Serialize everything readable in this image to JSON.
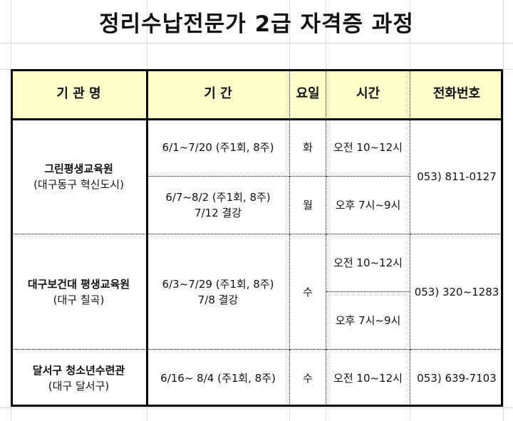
{
  "title": "정리수납전문가 2급 자격증 과정",
  "headers": [
    "기 관 명",
    "기 간",
    "요일",
    "시간",
    "전화번호"
  ],
  "rows": [
    {
      "org": "그린평생교육원",
      "org_sub": "(대구동구 혁신도시)",
      "phone": "053) 811-0127",
      "sessions": [
        {
          "period": "6/1~7/20 (주1회, 8주)",
          "period_note": "",
          "day": "화",
          "time": "오전 10~12시"
        },
        {
          "period": "6/7~8/2 (주1회, 8주)",
          "period_note": "7/12 결강",
          "day": "월",
          "time": "오후 7시~9시"
        }
      ]
    },
    {
      "org": "대구보건대 평생교육원",
      "org_sub": "(대구 칠곡)",
      "phone": "053) 320~1283",
      "period": "6/3~7/29 (주1회, 8주)",
      "period_note": "7/8 결강",
      "day": "수",
      "times": [
        "오전 10~12시",
        "오후 7시~9시"
      ]
    },
    {
      "org": "달서구 청소년수련관",
      "org_sub": "(대구 달서구)",
      "phone": "053) 639-7103",
      "period": "6/16~ 8/4 (주1회, 8주)",
      "day": "수",
      "time": "오전 10~12시"
    }
  ],
  "colors": {
    "header_bg": "#ffffcc",
    "border": "#000000",
    "grid": "#dcdcdc"
  }
}
